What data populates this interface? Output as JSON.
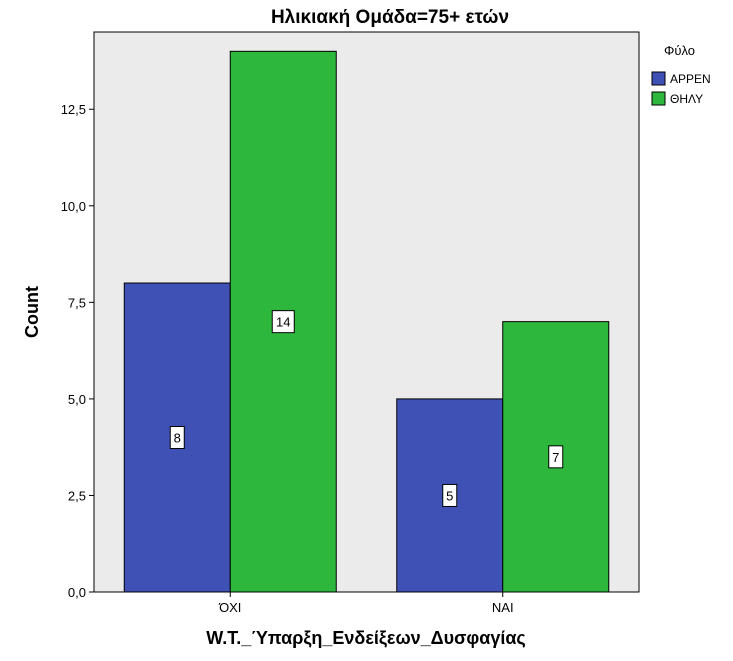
{
  "chart_data": {
    "type": "bar",
    "title": "Ηλικιακή Ομάδα=75+ ετών",
    "xlabel": "W.T._Ύπαρξη_Ενδείξεων_Δυσφαγίας",
    "ylabel": "Count",
    "categories": [
      "ΌΧΙ",
      "ΝΑΙ"
    ],
    "series": [
      {
        "name": "ΑΡΡΕΝ",
        "values": [
          8,
          5
        ],
        "color": "#3F51B5"
      },
      {
        "name": "ΘΗΛΥ",
        "values": [
          14,
          7
        ],
        "color": "#2DB83D"
      }
    ],
    "ylim": [
      0,
      14.5
    ],
    "yticks": [
      "0,0",
      "2,5",
      "5,0",
      "7,5",
      "10,0",
      "12,5"
    ],
    "ytick_values": [
      0,
      2.5,
      5,
      7.5,
      10,
      12.5
    ],
    "legend": {
      "title": "Φύλο",
      "position": "top-right"
    },
    "data_labels": true,
    "grid": false,
    "plot_background": "#EBEBEB"
  }
}
